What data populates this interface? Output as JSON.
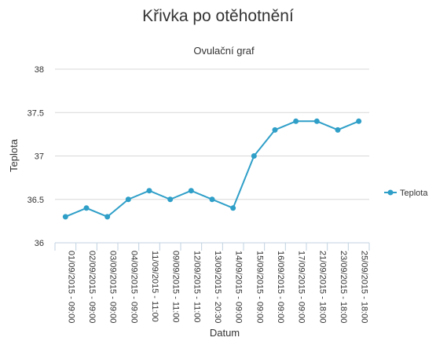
{
  "page": {
    "title": "Křivka po otěhotnění"
  },
  "chart_data": {
    "type": "line",
    "title": "Ovulační graf",
    "xlabel": "Datum",
    "ylabel": "Teplota",
    "ylim": [
      36,
      38
    ],
    "yticks": [
      "36",
      "36.5",
      "37",
      "37.5",
      "38"
    ],
    "grid": true,
    "legend_position": "right",
    "categories": [
      "01/09/2015 - 09:00",
      "02/09/2015 - 09:00",
      "03/09/2015 - 09:00",
      "04/09/2015 - 09:00",
      "11/09/2015 - 11:00",
      "09/09/2015 - 11:00",
      "12/09/2015 - 11:00",
      "13/09/2015 - 20:30",
      "14/09/2015 - 09:00",
      "15/09/2015 - 09:00",
      "16/09/2015 - 09:00",
      "17/09/2015 - 09:00",
      "21/09/2015 - 18:00",
      "23/09/2015 - 18:00",
      "25/09/2015 - 18:00"
    ],
    "series": [
      {
        "name": "Teplota",
        "color": "#2f9fc8",
        "values": [
          36.3,
          36.4,
          36.3,
          36.5,
          36.6,
          36.5,
          36.6,
          36.5,
          36.4,
          37.0,
          37.3,
          37.4,
          37.4,
          37.3,
          37.4
        ]
      }
    ]
  }
}
